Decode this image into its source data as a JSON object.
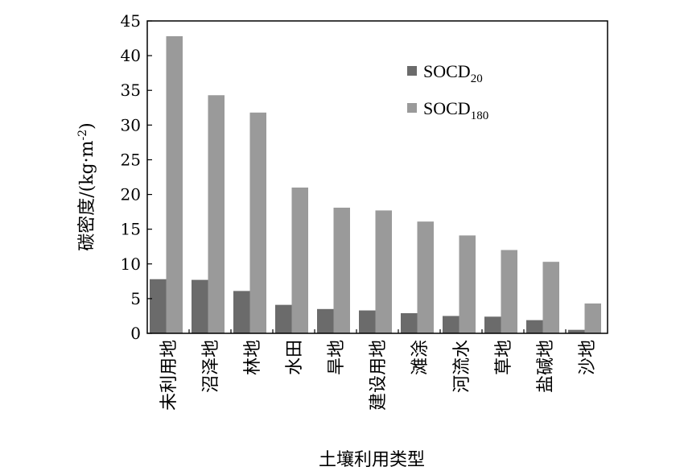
{
  "chart_data": {
    "type": "bar",
    "title": "",
    "xlabel": "土壤利用类型",
    "ylabel": "碳密度/(kg·m-2)",
    "ylabel_parts": {
      "main": "碳密度/(kg·m",
      "sup": "-2",
      "close": ")"
    },
    "ylim": [
      0,
      45
    ],
    "yticks": [
      "0",
      "5",
      "10",
      "15",
      "20",
      "25",
      "30",
      "35",
      "40",
      "45"
    ],
    "grid": false,
    "legend_position": "top-right",
    "categories": [
      "未利用地",
      "沼泽地",
      "林地",
      "水田",
      "旱地",
      "建设用地",
      "滩涂",
      "河流水",
      "草地",
      "盐碱地",
      "沙地"
    ],
    "series": [
      {
        "name": "SOCD20",
        "name_parts": {
          "base": "SOCD",
          "sub": "20"
        },
        "color": "#6b6b6b",
        "values": [
          7.8,
          7.7,
          6.1,
          4.1,
          3.5,
          3.3,
          2.9,
          2.5,
          2.4,
          1.9,
          0.5
        ]
      },
      {
        "name": "SOCD180",
        "name_parts": {
          "base": "SOCD",
          "sub": "180"
        },
        "color": "#9a9a9a",
        "values": [
          42.8,
          34.3,
          31.8,
          21.0,
          18.1,
          17.7,
          16.1,
          14.1,
          12.0,
          10.3,
          4.3
        ]
      }
    ]
  }
}
